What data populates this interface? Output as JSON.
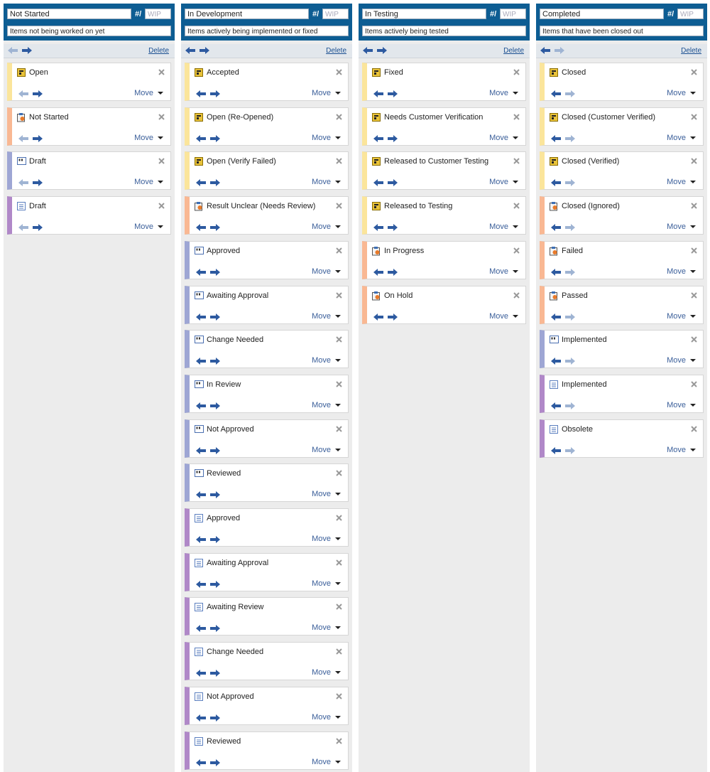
{
  "labels": {
    "wip_prefix": "#/",
    "wip_placeholder": "WIP",
    "delete": "Delete",
    "move": "Move"
  },
  "columns": [
    {
      "title": "Not Started",
      "description": "Items not being worked on yet",
      "cards": [
        {
          "title": "Open",
          "color": "#fbe59b"
        },
        {
          "title": "Not Started",
          "color": "#f9b893"
        },
        {
          "title": "Draft",
          "color": "#9ea6d4"
        },
        {
          "title": "Draft",
          "color": "#b088c8"
        }
      ]
    },
    {
      "title": "In Development",
      "description": "Items actively being implemented or fixed",
      "cards": [
        {
          "title": "Accepted",
          "color": "#fbe59b"
        },
        {
          "title": "Open (Re-Opened)",
          "color": "#fbe59b"
        },
        {
          "title": "Open (Verify Failed)",
          "color": "#fbe59b"
        },
        {
          "title": "Result Unclear (Needs Review)",
          "color": "#f9b893"
        },
        {
          "title": "Approved",
          "color": "#9ea6d4"
        },
        {
          "title": "Awaiting Approval",
          "color": "#9ea6d4"
        },
        {
          "title": "Change Needed",
          "color": "#9ea6d4"
        },
        {
          "title": "In Review",
          "color": "#9ea6d4"
        },
        {
          "title": "Not Approved",
          "color": "#9ea6d4"
        },
        {
          "title": "Reviewed",
          "color": "#9ea6d4"
        },
        {
          "title": "Approved",
          "color": "#b088c8"
        },
        {
          "title": "Awaiting Approval",
          "color": "#b088c8"
        },
        {
          "title": "Awaiting Review",
          "color": "#b088c8"
        },
        {
          "title": "Change Needed",
          "color": "#b088c8"
        },
        {
          "title": "Not Approved",
          "color": "#b088c8"
        },
        {
          "title": "Reviewed",
          "color": "#b088c8"
        }
      ]
    },
    {
      "title": "In Testing",
      "description": "Items actively being tested",
      "cards": [
        {
          "title": "Fixed",
          "color": "#fbe59b"
        },
        {
          "title": "Needs Customer Verification",
          "color": "#fbe59b"
        },
        {
          "title": "Released to Customer Testing",
          "color": "#fbe59b"
        },
        {
          "title": "Released to Testing",
          "color": "#fbe59b"
        },
        {
          "title": "In Progress",
          "color": "#f9b893"
        },
        {
          "title": "On Hold",
          "color": "#f9b893"
        }
      ]
    },
    {
      "title": "Completed",
      "description": "Items that have been closed out",
      "cards": [
        {
          "title": "Closed",
          "color": "#fbe59b"
        },
        {
          "title": "Closed (Customer Verified)",
          "color": "#fbe59b"
        },
        {
          "title": "Closed (Verified)",
          "color": "#fbe59b"
        },
        {
          "title": "Closed (Ignored)",
          "color": "#f9b893"
        },
        {
          "title": "Failed",
          "color": "#f9b893"
        },
        {
          "title": "Passed",
          "color": "#f9b893"
        },
        {
          "title": "Implemented",
          "color": "#9ea6d4"
        },
        {
          "title": "Implemented",
          "color": "#b088c8"
        },
        {
          "title": "Obsolete",
          "color": "#b088c8"
        }
      ]
    }
  ]
}
